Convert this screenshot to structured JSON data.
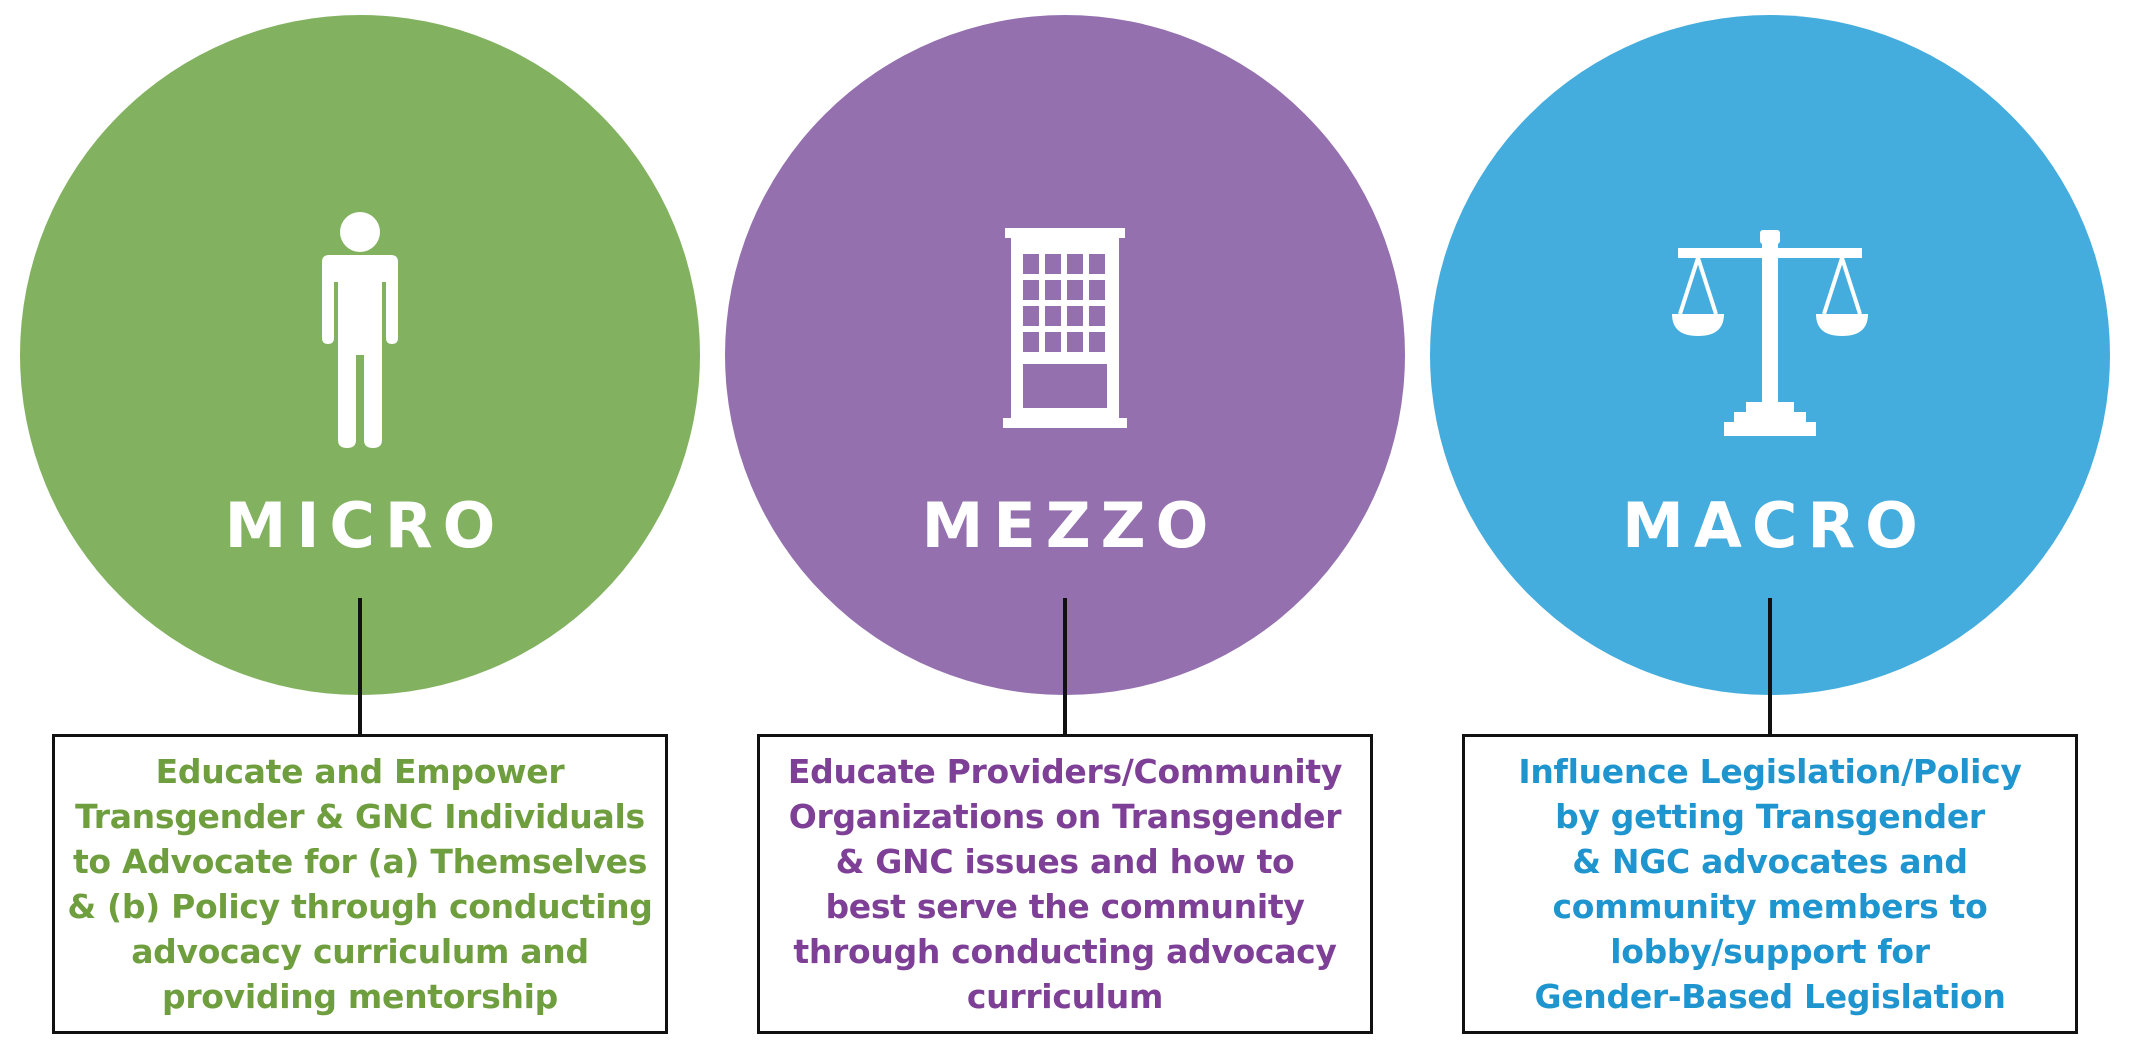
{
  "levels": [
    {
      "key": "micro",
      "label": "MICRO",
      "icon": "person-icon",
      "color": "#82b260",
      "description": "Educate and Empower\nTransgender & GNC Individuals\nto Advocate for (a) Themselves\n& (b) Policy through conducting\nadvocacy curriculum and\nproviding mentorship"
    },
    {
      "key": "mezzo",
      "label": "MEZZO",
      "icon": "building-icon",
      "color": "#9470af",
      "description": "Educate Providers/Community\nOrganizations on Transgender\n& GNC issues and how to\nbest serve the community\nthrough conducting advocacy\ncurriculum"
    },
    {
      "key": "macro",
      "label": "MACRO",
      "icon": "scales-of-justice-icon",
      "color": "#45addd",
      "description": "Influence Legislation/Policy\nby getting Transgender\n& NGC advocates and\ncommunity members to\nlobby/support for\nGender-Based Legislation"
    }
  ],
  "text_colors": {
    "micro": "#6f9e3f",
    "mezzo": "#7e3f96",
    "macro": "#1e95cf"
  }
}
